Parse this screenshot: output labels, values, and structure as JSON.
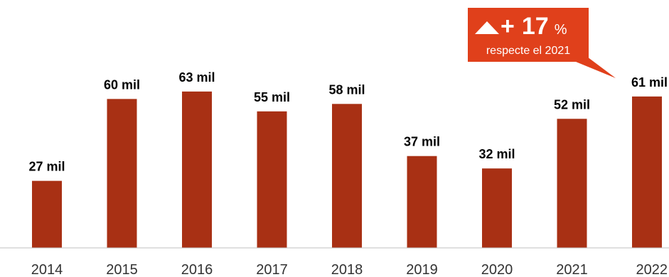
{
  "colors": {
    "bar": "#A83014",
    "callout": "#E0401B",
    "axis": "#BFBFBF"
  },
  "callout": {
    "icon": "triangle-up-icon",
    "sign": "+",
    "value": "17",
    "unit": "%",
    "subtitle": "respecte el 2021"
  },
  "chart_data": {
    "type": "bar",
    "categories": [
      "2014",
      "2015",
      "2016",
      "2017",
      "2018",
      "2019",
      "2020",
      "2021",
      "2022"
    ],
    "values": [
      27,
      60,
      63,
      55,
      58,
      37,
      32,
      52,
      61
    ],
    "data_labels": [
      "27 mil",
      "60 mil",
      "63 mil",
      "55 mil",
      "58 mil",
      "37 mil",
      "32 mil",
      "52 mil",
      "61 mil"
    ],
    "ylim": [
      0,
      89
    ],
    "grid": false,
    "legend": "none"
  }
}
